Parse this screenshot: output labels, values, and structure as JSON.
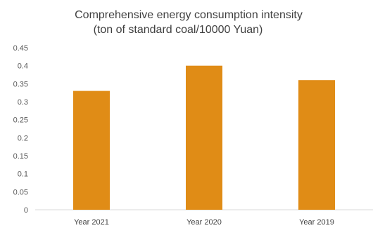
{
  "chart_data": {
    "type": "bar",
    "title": "Comprehensive energy consumption intensity",
    "subtitle": "(ton of standard coal/10000 Yuan)",
    "categories": [
      "Year 2021",
      "Year 2020",
      "Year 2019"
    ],
    "values": [
      0.33,
      0.4,
      0.36
    ],
    "yticks": [
      "0",
      "0.05",
      "0.1",
      "0.15",
      "0.2",
      "0.25",
      "0.3",
      "0.35",
      "0.4",
      "0.45"
    ],
    "ylim": [
      0,
      0.45
    ],
    "grid": false,
    "legend": "none",
    "bar_color": "#e08c16"
  }
}
